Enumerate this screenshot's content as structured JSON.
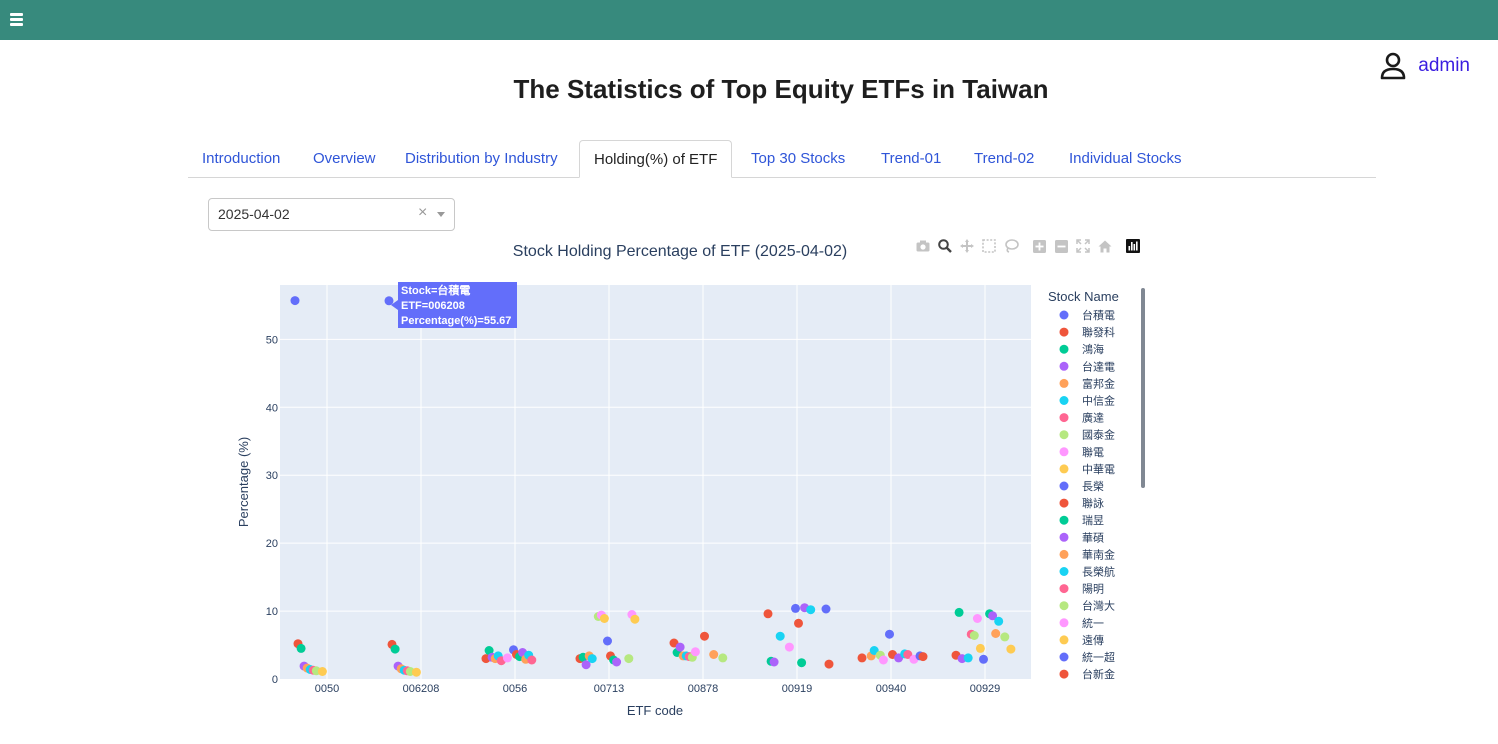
{
  "header": {
    "menu_icon": "hamburger-icon",
    "accent": "#378a7d"
  },
  "user": {
    "icon": "person-icon",
    "name": "admin"
  },
  "page_title": "The Statistics of Top Equity ETFs in Taiwan",
  "tabs": [
    {
      "label": "Introduction",
      "active": false
    },
    {
      "label": "Overview",
      "active": false
    },
    {
      "label": "Distribution by Industry",
      "active": false
    },
    {
      "label": "Holding(%) of ETF",
      "active": true
    },
    {
      "label": "Top 30 Stocks",
      "active": false
    },
    {
      "label": "Trend-01",
      "active": false
    },
    {
      "label": "Trend-02",
      "active": false
    },
    {
      "label": "Individual Stocks",
      "active": false
    }
  ],
  "date_select": {
    "value": "2025-04-02",
    "clear": "×"
  },
  "modebar": [
    "camera-icon",
    "zoom-icon",
    "pan-icon",
    "box-select-icon",
    "lasso-icon",
    "zoom-in-icon",
    "zoom-out-icon",
    "autoscale-icon",
    "reset-axes-icon",
    "plotly-logo-icon"
  ],
  "tooltip": {
    "line1": "Stock=台積電",
    "line2": "ETF=006208",
    "line3": "Percentage(%)=55.67"
  },
  "chart_data": {
    "type": "scatter",
    "title": "Stock Holding Percentage of ETF  (2025-04-02)",
    "xlabel": "ETF code",
    "ylabel": "Percentage (%)",
    "categories": [
      "0050",
      "006208",
      "0056",
      "00713",
      "00878",
      "00919",
      "00940",
      "00929"
    ],
    "ylim": [
      0,
      58
    ],
    "yticks": [
      0,
      10,
      20,
      30,
      40,
      50
    ],
    "grid": true,
    "legend_title": "Stock Name",
    "legend_position": "right",
    "series": [
      {
        "name": "台積電",
        "color": "#636efa",
        "points": [
          [
            0,
            55.7
          ],
          [
            1,
            55.67
          ]
        ]
      },
      {
        "name": "聯發科",
        "color": "#ef553b",
        "points": [
          [
            0,
            5.2
          ],
          [
            1,
            5.1
          ],
          [
            2,
            3.0
          ],
          [
            3,
            3.0
          ],
          [
            4,
            5.3
          ],
          [
            5,
            9.6
          ],
          [
            6,
            3.1
          ],
          [
            7,
            3.5
          ]
        ]
      },
      {
        "name": "鴻海",
        "color": "#00cc96",
        "points": [
          [
            0,
            4.5
          ],
          [
            1,
            4.4
          ],
          [
            2,
            4.2
          ],
          [
            3,
            3.2
          ],
          [
            4,
            3.9
          ],
          [
            5,
            2.6
          ],
          [
            7,
            9.8
          ]
        ]
      },
      {
        "name": "台達電",
        "color": "#ab63fa",
        "points": [
          [
            0,
            1.9
          ],
          [
            1,
            1.9
          ],
          [
            2,
            3.2
          ],
          [
            3,
            2.1
          ],
          [
            4,
            4.7
          ],
          [
            5,
            2.5
          ],
          [
            7,
            3.0
          ]
        ]
      },
      {
        "name": "富邦金",
        "color": "#ffa15a",
        "points": [
          [
            0,
            1.6
          ],
          [
            1,
            1.5
          ],
          [
            2,
            3.0
          ],
          [
            3,
            3.4
          ],
          [
            4,
            3.4
          ],
          [
            6,
            3.4
          ]
        ]
      },
      {
        "name": "中信金",
        "color": "#19d3f3",
        "points": [
          [
            0,
            1.4
          ],
          [
            1,
            1.3
          ],
          [
            2,
            3.4
          ],
          [
            3,
            3.0
          ],
          [
            4,
            3.4
          ],
          [
            5,
            6.3
          ],
          [
            6,
            4.2
          ],
          [
            7,
            3.1
          ]
        ]
      },
      {
        "name": "廣達",
        "color": "#ff6692",
        "points": [
          [
            0,
            1.3
          ],
          [
            1,
            1.2
          ],
          [
            2,
            2.7
          ],
          [
            4,
            3.3
          ],
          [
            7,
            6.6
          ]
        ]
      },
      {
        "name": "國泰金",
        "color": "#b6e880",
        "points": [
          [
            0,
            1.2
          ],
          [
            1,
            1.1
          ],
          [
            3,
            9.2
          ],
          [
            4,
            3.2
          ],
          [
            6,
            3.5
          ],
          [
            7,
            6.4
          ]
        ]
      },
      {
        "name": "聯電",
        "color": "#ff97ff",
        "points": [
          [
            2,
            3.1
          ],
          [
            3,
            9.4
          ],
          [
            4,
            4.0
          ],
          [
            5,
            4.7
          ],
          [
            6,
            2.8
          ],
          [
            7,
            8.9
          ]
        ]
      },
      {
        "name": "中華電",
        "color": "#fecb52",
        "points": [
          [
            0,
            1.1
          ],
          [
            1,
            1.0
          ],
          [
            3,
            8.9
          ],
          [
            7,
            4.5
          ]
        ]
      },
      {
        "name": "長榮",
        "color": "#636efa",
        "points": [
          [
            2,
            4.3
          ],
          [
            3,
            5.6
          ],
          [
            5,
            10.4
          ],
          [
            6,
            6.6
          ],
          [
            7,
            2.9
          ]
        ]
      },
      {
        "name": "聯詠",
        "color": "#ef553b",
        "points": [
          [
            2,
            3.6
          ],
          [
            3,
            3.4
          ],
          [
            4,
            6.3
          ],
          [
            5,
            8.2
          ],
          [
            6,
            3.6
          ]
        ]
      },
      {
        "name": "瑞昱",
        "color": "#00cc96",
        "points": [
          [
            2,
            3.3
          ],
          [
            3,
            2.8
          ],
          [
            5,
            2.4
          ],
          [
            7,
            9.6
          ]
        ]
      },
      {
        "name": "華碩",
        "color": "#ab63fa",
        "points": [
          [
            2,
            3.9
          ],
          [
            3,
            2.5
          ],
          [
            5,
            10.5
          ],
          [
            6,
            3.1
          ],
          [
            7,
            9.3
          ]
        ]
      },
      {
        "name": "華南金",
        "color": "#ffa15a",
        "points": [
          [
            2,
            2.9
          ],
          [
            4,
            3.6
          ],
          [
            7,
            6.7
          ]
        ]
      },
      {
        "name": "長榮航",
        "color": "#19d3f3",
        "points": [
          [
            2,
            3.5
          ],
          [
            5,
            10.2
          ],
          [
            6,
            3.7
          ],
          [
            7,
            8.5
          ]
        ]
      },
      {
        "name": "陽明",
        "color": "#ff6692",
        "points": [
          [
            2,
            2.8
          ],
          [
            6,
            3.6
          ]
        ]
      },
      {
        "name": "台灣大",
        "color": "#b6e880",
        "points": [
          [
            3,
            3.0
          ],
          [
            4,
            3.1
          ],
          [
            7,
            6.2
          ]
        ]
      },
      {
        "name": "統一",
        "color": "#ff97ff",
        "points": [
          [
            3,
            9.5
          ],
          [
            6,
            2.9
          ]
        ]
      },
      {
        "name": "遠傳",
        "color": "#fecb52",
        "points": [
          [
            3,
            8.8
          ],
          [
            7,
            4.4
          ]
        ]
      },
      {
        "name": "統一超",
        "color": "#636efa",
        "points": [
          [
            5,
            10.3
          ],
          [
            6,
            3.4
          ]
        ]
      },
      {
        "name": "台新金",
        "color": "#ef553b",
        "points": [
          [
            5,
            2.2
          ],
          [
            6,
            3.3
          ]
        ]
      }
    ]
  }
}
